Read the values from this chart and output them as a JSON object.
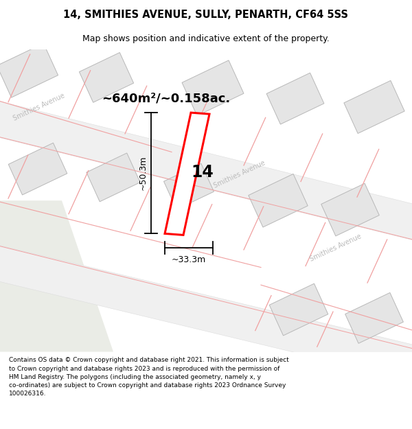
{
  "title": "14, SMITHIES AVENUE, SULLY, PENARTH, CF64 5SS",
  "subtitle": "Map shows position and indicative extent of the property.",
  "footer": "Contains OS data © Crown copyright and database right 2021. This information is subject\nto Crown copyright and database rights 2023 and is reproduced with the permission of\nHM Land Registry. The polygons (including the associated geometry, namely x, y\nco-ordinates) are subject to Crown copyright and database rights 2023 Ordnance Survey\n100026316.",
  "area_label": "~640m²/~0.158ac.",
  "width_label": "~33.3m",
  "height_label": "~50.3m",
  "plot_number": "14",
  "map_bg": "#f7f7f7",
  "road_color": "#f0f0f0",
  "road_edge_color": "#dddddd",
  "building_fill": "#e5e5e5",
  "building_edge": "#b8b8b8",
  "plot_fill": "#ffffff",
  "plot_edge": "#ff0000",
  "road_label_color": "#bbbbbb",
  "green_area_color": "#eaece6",
  "pink_line_color": "#f0a0a0",
  "title_fontsize": 10.5,
  "subtitle_fontsize": 9,
  "footer_fontsize": 6.5,
  "area_fontsize": 13,
  "dim_fontsize": 9,
  "plot_num_fontsize": 17,
  "road_label_fontsize": 7
}
